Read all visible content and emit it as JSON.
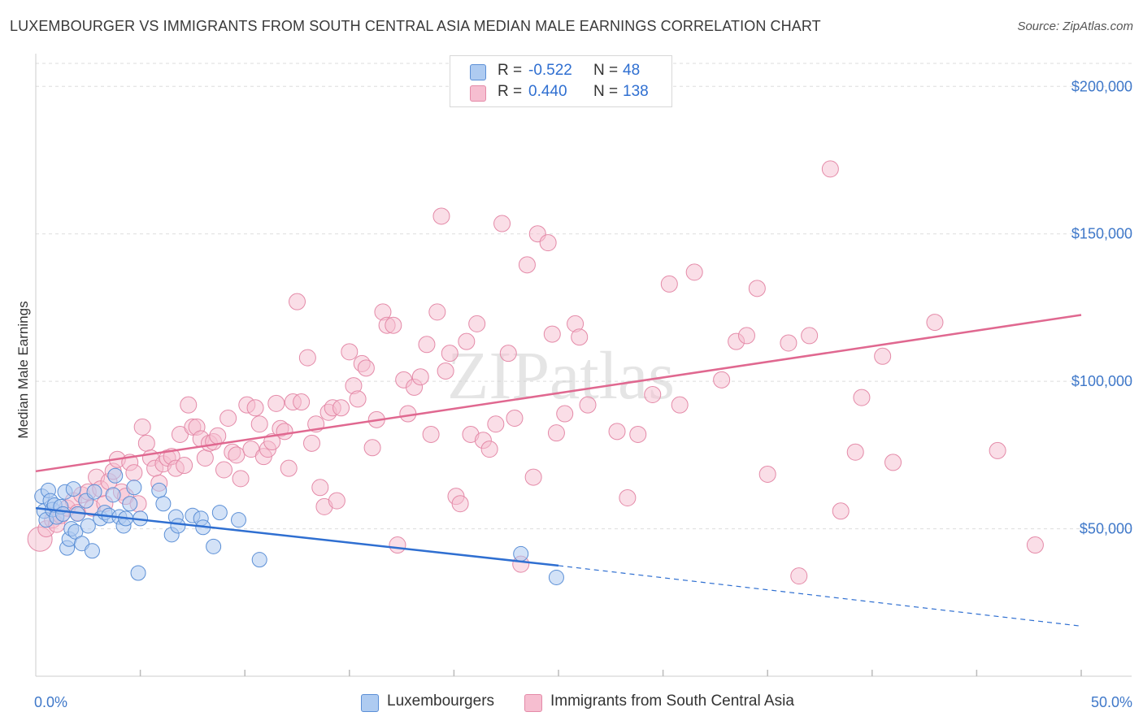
{
  "title": "LUXEMBOURGER VS IMMIGRANTS FROM SOUTH CENTRAL ASIA MEDIAN MALE EARNINGS CORRELATION CHART",
  "source": "Source: ZipAtlas.com",
  "watermark": "ZIPatlas",
  "legend": {
    "rows": [
      {
        "r_label": "R =",
        "r_value": "-0.522",
        "n_label": "N =",
        "n_value": "48"
      },
      {
        "r_label": "R =",
        "r_value": "0.440",
        "n_label": "N =",
        "n_value": "138"
      }
    ]
  },
  "bottom_legend": [
    "Luxembourgers",
    "Immigrants from South Central Asia"
  ],
  "colors": {
    "blue_fill": "#aecbf1",
    "blue_stroke": "#5b8fd6",
    "blue_line": "#2f6fd1",
    "pink_fill": "#f6bed0",
    "pink_stroke": "#e48aa8",
    "pink_line": "#e06890",
    "grid": "#dddddd",
    "axis_label": "#3f78c9"
  },
  "chart_data": {
    "type": "scatter",
    "xlabel": "",
    "ylabel": "Median Male Earnings",
    "xlim": [
      0,
      50
    ],
    "ylim": [
      0,
      210000
    ],
    "x_tick_labels": [
      "0.0%",
      "50.0%"
    ],
    "y_ticks": [
      50000,
      100000,
      150000,
      200000
    ],
    "y_tick_labels": [
      "$50,000",
      "$100,000",
      "$150,000",
      "$200,000"
    ],
    "grid": true,
    "legend_position": "top-center",
    "series": [
      {
        "name": "Luxembourgers",
        "color": "#5b8fd6",
        "r": -0.522,
        "n": 48,
        "trend": {
          "x": [
            0,
            25
          ],
          "y": [
            57000,
            37500
          ],
          "dashed_to": [
            50,
            17000
          ]
        },
        "points": [
          [
            0.3,
            61000
          ],
          [
            0.4,
            56000
          ],
          [
            0.5,
            53000
          ],
          [
            0.6,
            63000
          ],
          [
            0.7,
            59500
          ],
          [
            0.8,
            56500
          ],
          [
            0.9,
            58000
          ],
          [
            1.0,
            54000
          ],
          [
            1.2,
            57500
          ],
          [
            1.3,
            55000
          ],
          [
            1.4,
            62500
          ],
          [
            1.5,
            43500
          ],
          [
            1.6,
            46500
          ],
          [
            1.7,
            50000
          ],
          [
            1.8,
            63500
          ],
          [
            1.9,
            49000
          ],
          [
            2.0,
            55000
          ],
          [
            2.2,
            45000
          ],
          [
            2.4,
            59500
          ],
          [
            2.5,
            51000
          ],
          [
            2.7,
            42500
          ],
          [
            2.8,
            62500
          ],
          [
            3.1,
            53500
          ],
          [
            3.3,
            55500
          ],
          [
            3.5,
            54500
          ],
          [
            3.7,
            61500
          ],
          [
            3.8,
            68000
          ],
          [
            4.0,
            54000
          ],
          [
            4.2,
            51000
          ],
          [
            4.3,
            53500
          ],
          [
            4.5,
            58500
          ],
          [
            4.7,
            64000
          ],
          [
            4.9,
            35000
          ],
          [
            5.0,
            53500
          ],
          [
            5.9,
            63000
          ],
          [
            6.1,
            58500
          ],
          [
            6.5,
            48000
          ],
          [
            6.7,
            54000
          ],
          [
            6.8,
            51000
          ],
          [
            7.5,
            54500
          ],
          [
            7.9,
            53500
          ],
          [
            8.0,
            50500
          ],
          [
            8.5,
            44000
          ],
          [
            8.8,
            55500
          ],
          [
            9.7,
            53000
          ],
          [
            10.7,
            39500
          ],
          [
            23.2,
            41500
          ],
          [
            24.9,
            33500
          ]
        ]
      },
      {
        "name": "Immigrants from South Central Asia",
        "color": "#e48aa8",
        "r": 0.44,
        "n": 138,
        "trend": {
          "x": [
            0,
            50
          ],
          "y": [
            69500,
            122500
          ]
        },
        "points": [
          [
            0.2,
            46500
          ],
          [
            0.5,
            50000
          ],
          [
            0.8,
            53000
          ],
          [
            1.0,
            51500
          ],
          [
            1.2,
            54500
          ],
          [
            1.5,
            57000
          ],
          [
            1.8,
            59500
          ],
          [
            2.0,
            55500
          ],
          [
            2.2,
            61500
          ],
          [
            2.5,
            62500
          ],
          [
            2.7,
            57000
          ],
          [
            2.9,
            67500
          ],
          [
            3.1,
            63500
          ],
          [
            3.3,
            58500
          ],
          [
            3.5,
            66000
          ],
          [
            3.7,
            69500
          ],
          [
            3.9,
            73500
          ],
          [
            4.1,
            62500
          ],
          [
            4.3,
            61000
          ],
          [
            4.5,
            72500
          ],
          [
            4.7,
            69000
          ],
          [
            4.9,
            58500
          ],
          [
            5.1,
            84500
          ],
          [
            5.3,
            79000
          ],
          [
            5.5,
            74000
          ],
          [
            5.7,
            70500
          ],
          [
            5.9,
            65500
          ],
          [
            6.1,
            72000
          ],
          [
            6.3,
            74000
          ],
          [
            6.5,
            74500
          ],
          [
            6.7,
            70500
          ],
          [
            6.9,
            82000
          ],
          [
            7.1,
            71500
          ],
          [
            7.3,
            92000
          ],
          [
            7.5,
            84500
          ],
          [
            7.7,
            84500
          ],
          [
            7.9,
            80500
          ],
          [
            8.1,
            74000
          ],
          [
            8.3,
            79000
          ],
          [
            8.5,
            79500
          ],
          [
            8.7,
            81500
          ],
          [
            9.0,
            70000
          ],
          [
            9.2,
            87500
          ],
          [
            9.4,
            76000
          ],
          [
            9.6,
            75000
          ],
          [
            9.8,
            67000
          ],
          [
            10.1,
            92000
          ],
          [
            10.3,
            77000
          ],
          [
            10.5,
            91000
          ],
          [
            10.7,
            85500
          ],
          [
            10.9,
            74500
          ],
          [
            11.1,
            77000
          ],
          [
            11.3,
            79500
          ],
          [
            11.5,
            92500
          ],
          [
            11.7,
            84000
          ],
          [
            11.9,
            83000
          ],
          [
            12.1,
            70500
          ],
          [
            12.3,
            93000
          ],
          [
            12.5,
            127000
          ],
          [
            12.7,
            93000
          ],
          [
            13.0,
            108000
          ],
          [
            13.2,
            79000
          ],
          [
            13.4,
            85500
          ],
          [
            13.6,
            64000
          ],
          [
            13.8,
            57500
          ],
          [
            14.0,
            89500
          ],
          [
            14.2,
            91000
          ],
          [
            14.4,
            59500
          ],
          [
            14.6,
            91000
          ],
          [
            15.0,
            110000
          ],
          [
            15.2,
            98500
          ],
          [
            15.4,
            94000
          ],
          [
            15.6,
            106000
          ],
          [
            15.8,
            104500
          ],
          [
            16.1,
            77500
          ],
          [
            16.3,
            87000
          ],
          [
            16.6,
            123500
          ],
          [
            16.8,
            119000
          ],
          [
            17.1,
            119000
          ],
          [
            17.3,
            44500
          ],
          [
            17.6,
            100500
          ],
          [
            17.8,
            89000
          ],
          [
            18.1,
            98000
          ],
          [
            18.4,
            101500
          ],
          [
            18.7,
            112500
          ],
          [
            18.9,
            82000
          ],
          [
            19.2,
            123500
          ],
          [
            19.4,
            156000
          ],
          [
            19.6,
            103500
          ],
          [
            19.8,
            109500
          ],
          [
            20.1,
            61000
          ],
          [
            20.3,
            58500
          ],
          [
            20.6,
            113500
          ],
          [
            20.8,
            82000
          ],
          [
            21.1,
            119500
          ],
          [
            21.4,
            80000
          ],
          [
            21.7,
            77000
          ],
          [
            22.0,
            85500
          ],
          [
            22.3,
            153500
          ],
          [
            22.6,
            109500
          ],
          [
            22.9,
            87500
          ],
          [
            23.2,
            38000
          ],
          [
            23.5,
            139500
          ],
          [
            23.8,
            67500
          ],
          [
            24.0,
            150000
          ],
          [
            24.5,
            147000
          ],
          [
            24.7,
            116000
          ],
          [
            24.9,
            82500
          ],
          [
            25.3,
            89000
          ],
          [
            25.8,
            119500
          ],
          [
            26.0,
            115000
          ],
          [
            26.4,
            92000
          ],
          [
            27.8,
            83000
          ],
          [
            28.3,
            60500
          ],
          [
            28.8,
            82000
          ],
          [
            29.5,
            95500
          ],
          [
            30.3,
            133000
          ],
          [
            30.8,
            92000
          ],
          [
            31.5,
            137000
          ],
          [
            32.8,
            100500
          ],
          [
            33.5,
            113500
          ],
          [
            34.0,
            115500
          ],
          [
            34.5,
            131500
          ],
          [
            35.0,
            68500
          ],
          [
            36.0,
            113000
          ],
          [
            36.5,
            34000
          ],
          [
            37.0,
            115500
          ],
          [
            38.0,
            172000
          ],
          [
            38.5,
            56000
          ],
          [
            39.2,
            76000
          ],
          [
            39.5,
            94500
          ],
          [
            40.5,
            108500
          ],
          [
            41.0,
            72500
          ],
          [
            43.0,
            120000
          ],
          [
            46.0,
            76500
          ],
          [
            47.8,
            44500
          ]
        ]
      }
    ]
  }
}
